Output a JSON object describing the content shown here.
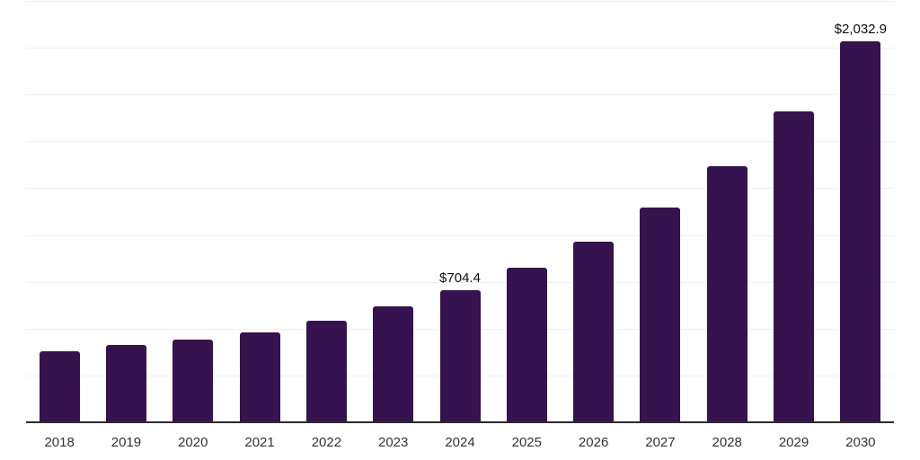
{
  "chart_data": {
    "type": "bar",
    "title": "",
    "xlabel": "",
    "ylabel": "",
    "categories": [
      "2018",
      "2019",
      "2020",
      "2021",
      "2022",
      "2023",
      "2024",
      "2025",
      "2026",
      "2027",
      "2028",
      "2029",
      "2030"
    ],
    "values": [
      381,
      414,
      439,
      478,
      543,
      618,
      704.4,
      824,
      966,
      1145,
      1369,
      1660,
      2032.9
    ],
    "annotations": [
      {
        "category": "2024",
        "text": "$704.4"
      },
      {
        "category": "2030",
        "text": "$2,032.9"
      }
    ],
    "ylim": [
      0,
      2250
    ],
    "gridline_step": 250,
    "grid": true,
    "legend": "none",
    "y_axis_labels_visible": false,
    "colors": {
      "bar": "#36124E",
      "gridline": "#f0f0f0",
      "axis_line": "#2b2b2b",
      "tick_label": "#333333",
      "value_label": "#0d0d0d"
    }
  }
}
